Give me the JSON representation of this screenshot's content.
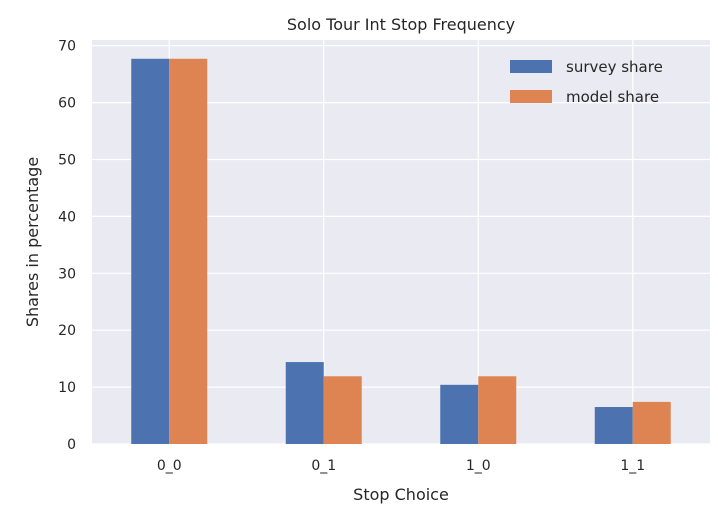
{
  "chart_data": {
    "type": "bar",
    "title": "Solo Tour Int Stop Frequency",
    "xlabel": "Stop Choice",
    "ylabel": "Shares in percentage",
    "categories": [
      "0_0",
      "0_1",
      "1_0",
      "1_1"
    ],
    "series": [
      {
        "name": "survey share",
        "values": [
          67.7,
          14.4,
          10.4,
          6.5
        ],
        "color": "#4c72b0"
      },
      {
        "name": "model share",
        "values": [
          67.7,
          11.9,
          11.9,
          7.4
        ],
        "color": "#dd8452"
      }
    ],
    "ylim": [
      0,
      71
    ],
    "yticks": [
      0,
      10,
      20,
      30,
      40,
      50,
      60,
      70
    ],
    "grid": true,
    "plot_background": "#eaeaf2",
    "legend_position": "top-right"
  }
}
